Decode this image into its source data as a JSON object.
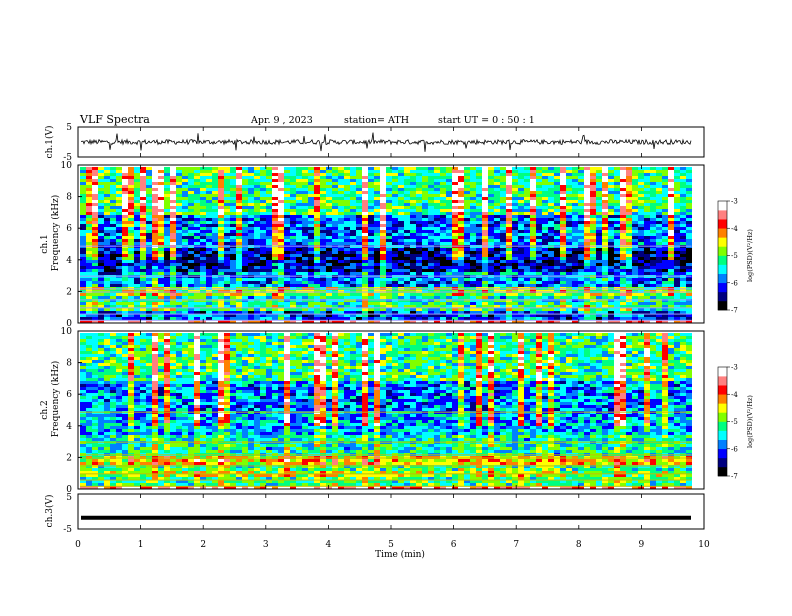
{
  "header": {
    "title": "VLF  Spectra",
    "date": "Apr. 9  , 2023",
    "station": "station= ATH",
    "start_ut": "start  UT  =    0  : 50 : 1"
  },
  "colorbar_label": "log(PSD)(V²/Hz)",
  "colorbar_colors": [
    "#000000",
    "#00007f",
    "#0000ff",
    "#0080ff",
    "#00ffff",
    "#00ff80",
    "#80ff00",
    "#ffff00",
    "#ff8000",
    "#ff0000",
    "#ff8080",
    "#ffffff"
  ],
  "chart_data": [
    {
      "type": "line",
      "name": "ch1-waveform",
      "ylabel": "ch.1(V)",
      "ylim": [
        -5,
        5
      ],
      "yticks": [
        "5",
        "-5"
      ],
      "xlim": [
        0,
        10
      ],
      "x_end": 9.8,
      "baseline": 0
    },
    {
      "type": "heatmap",
      "name": "ch1-spectrogram",
      "ylabel_line1": "ch.1",
      "ylabel_line2": "Frequency (kHz)",
      "ylim": [
        0,
        10
      ],
      "yticks": [
        "0",
        "2",
        "4",
        "6",
        "8",
        "10"
      ],
      "xlim": [
        0,
        10
      ],
      "x_end": 9.8,
      "zlim": [
        -7,
        -3
      ],
      "zticks": [
        "-3",
        "-4",
        "-5",
        "-6",
        "-7"
      ],
      "bands": [
        {
          "from": 0.0,
          "to": 0.3,
          "level": 0.9
        },
        {
          "from": 0.3,
          "to": 0.8,
          "level": 0.2
        },
        {
          "from": 0.8,
          "to": 1.2,
          "level": 0.45
        },
        {
          "from": 1.2,
          "to": 1.8,
          "level": 0.4
        },
        {
          "from": 1.8,
          "to": 2.3,
          "level": 0.55
        },
        {
          "from": 2.3,
          "to": 3.3,
          "level": 0.25
        },
        {
          "from": 3.3,
          "to": 4.8,
          "level": 0.12
        },
        {
          "from": 4.8,
          "to": 7.0,
          "level": 0.25
        },
        {
          "from": 7.0,
          "to": 10.0,
          "level": 0.45
        }
      ]
    },
    {
      "type": "heatmap",
      "name": "ch2-spectrogram",
      "ylabel_line1": "ch.2",
      "ylabel_line2": "Frequency (kHz)",
      "ylim": [
        0,
        10
      ],
      "yticks": [
        "0",
        "2",
        "4",
        "6",
        "8",
        "10"
      ],
      "xlim": [
        0,
        10
      ],
      "x_end": 9.8,
      "zlim": [
        -7,
        -3
      ],
      "zticks": [
        "-3",
        "-4",
        "-5",
        "-6",
        "-7"
      ],
      "bands": [
        {
          "from": 0.0,
          "to": 0.3,
          "level": 0.9
        },
        {
          "from": 0.3,
          "to": 0.8,
          "level": 0.45
        },
        {
          "from": 0.8,
          "to": 1.2,
          "level": 0.55
        },
        {
          "from": 1.2,
          "to": 1.7,
          "level": 0.45
        },
        {
          "from": 1.7,
          "to": 2.2,
          "level": 0.65
        },
        {
          "from": 2.2,
          "to": 3.5,
          "level": 0.4
        },
        {
          "from": 3.5,
          "to": 5.0,
          "level": 0.32
        },
        {
          "from": 5.0,
          "to": 7.0,
          "level": 0.28
        },
        {
          "from": 7.0,
          "to": 10.0,
          "level": 0.45
        }
      ]
    },
    {
      "type": "line",
      "name": "ch3-waveform",
      "ylabel": "ch.3(V)",
      "ylim": [
        -5,
        5
      ],
      "yticks": [
        "5",
        "-5"
      ],
      "xlim": [
        0,
        10
      ],
      "x_end": 9.8,
      "baseline": -1.8
    }
  ],
  "xaxis": {
    "label": "Time  (min)",
    "ticks": [
      "0",
      "1",
      "2",
      "3",
      "4",
      "5",
      "6",
      "7",
      "8",
      "9",
      "10"
    ]
  }
}
